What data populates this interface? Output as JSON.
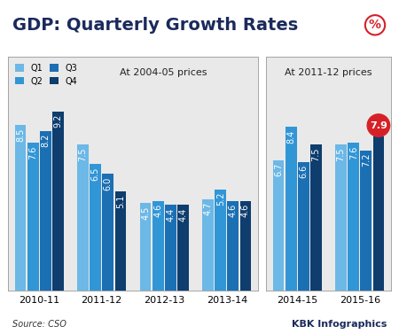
{
  "title": "GDP: Quarterly Growth Rates",
  "unit": "%",
  "source": "Source: CSO",
  "credit": "KBK Infographics",
  "chart_data": [
    {
      "type": "bar",
      "subtitle": "At 2004-05 prices",
      "categories": [
        "2010-11",
        "2011-12",
        "2012-13",
        "2013-14"
      ],
      "series": [
        {
          "name": "Q1",
          "color": "#6cb8e6",
          "values": [
            8.5,
            7.5,
            4.5,
            4.7
          ]
        },
        {
          "name": "Q2",
          "color": "#3196d6",
          "values": [
            7.6,
            6.5,
            4.6,
            5.2
          ]
        },
        {
          "name": "Q3",
          "color": "#1b6fb3",
          "values": [
            8.2,
            6.0,
            4.4,
            4.6
          ]
        },
        {
          "name": "Q4",
          "color": "#0e3d6e",
          "values": [
            9.2,
            5.1,
            4.4,
            4.6
          ]
        }
      ],
      "ylim": [
        0,
        12
      ],
      "tick_labels": "x",
      "data_labels": true,
      "legend": "upper left"
    },
    {
      "type": "bar",
      "subtitle": "At 2011-12 prices",
      "categories": [
        "2014-15",
        "2015-16"
      ],
      "series": [
        {
          "name": "Q1",
          "color": "#6cb8e6",
          "values": [
            6.7,
            7.5
          ]
        },
        {
          "name": "Q2",
          "color": "#3196d6",
          "values": [
            8.4,
            7.6
          ]
        },
        {
          "name": "Q3",
          "color": "#1b6fb3",
          "values": [
            6.6,
            7.2
          ]
        },
        {
          "name": "Q4",
          "color": "#0e3d6e",
          "values": [
            7.5,
            7.9
          ]
        }
      ],
      "ylim": [
        0,
        12
      ],
      "tick_labels": "x",
      "data_labels": true
    }
  ]
}
